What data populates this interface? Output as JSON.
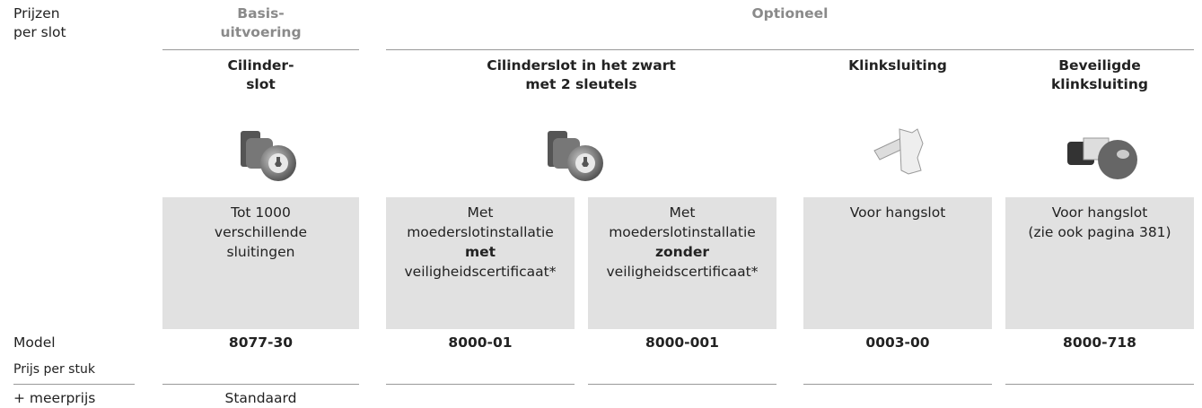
{
  "header": {
    "corner": [
      "Prijzen",
      "per slot"
    ],
    "basis": [
      "Basis-",
      "uitvoering"
    ],
    "optional": "Optioneel"
  },
  "titles": [
    [
      "Cilinder-",
      "slot"
    ],
    [
      "Cilinderslot in het zwart",
      "met 2 sleutels"
    ],
    [
      "Klinksluiting"
    ],
    [
      "Beveiligde",
      "klinksluiting"
    ]
  ],
  "descriptions": [
    [
      {
        "text": "Tot 1000",
        "bold": false
      },
      {
        "text": "verschillende",
        "bold": false
      },
      {
        "text": "sluitingen",
        "bold": false
      }
    ],
    [
      {
        "text": "Met",
        "bold": false
      },
      {
        "text": "moederslotinstallatie",
        "bold": false
      },
      {
        "text": "met",
        "bold": true
      },
      {
        "text": "veiligheidscertificaat*",
        "bold": false
      }
    ],
    [
      {
        "text": "Met",
        "bold": false
      },
      {
        "text": "moederslotinstallatie",
        "bold": false
      },
      {
        "text": "zonder",
        "bold": true
      },
      {
        "text": "veiligheidscertificaat*",
        "bold": false
      }
    ],
    [
      {
        "text": "Voor hangslot",
        "bold": false
      }
    ],
    [
      {
        "text": "Voor hangslot",
        "bold": false
      },
      {
        "text": "(zie ook pagina 381)",
        "bold": false
      }
    ]
  ],
  "models": [
    "8077-30",
    "8000-01",
    "8000-001",
    "0003-00",
    "8000-718"
  ],
  "row_labels": {
    "model": "Model",
    "price": "Prijs per stuk",
    "surcharge": "+ meerprijs"
  },
  "surcharge": [
    "Standaard"
  ]
}
